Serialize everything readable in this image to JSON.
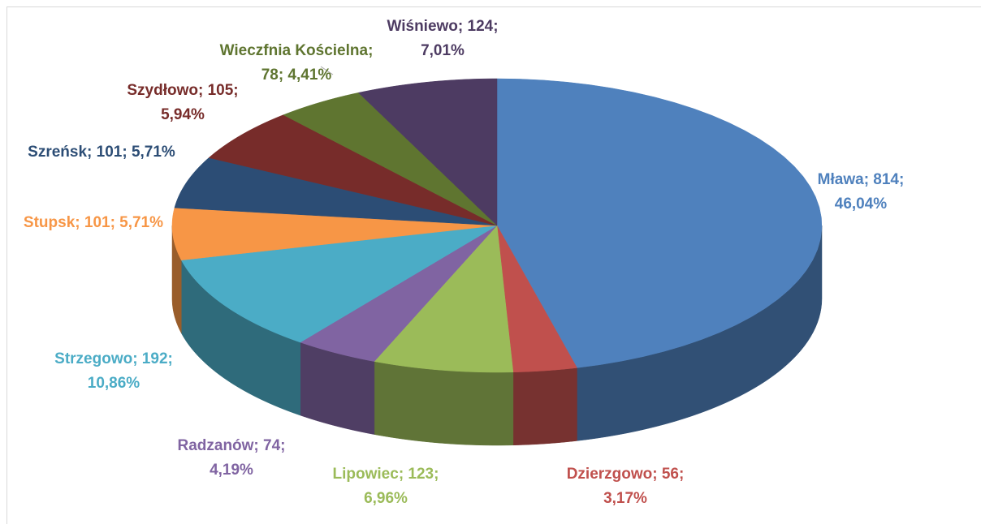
{
  "chart_data": {
    "type": "pie3d",
    "categories": [
      "Mława",
      "Dzierzgowo",
      "Lipowiec",
      "Radzanów",
      "Strzegowo",
      "Stupsk",
      "Szreńsk",
      "Szydłowo",
      "Wieczfnia Kościelna",
      "Wiśniewo"
    ],
    "values": [
      814,
      56,
      123,
      74,
      192,
      101,
      101,
      105,
      78,
      124
    ],
    "value_labels": [
      "Mława; 814; 46,04%",
      "Dzierzgowo; 56; 3,17%",
      "Lipowiec; 123; 6,96%",
      "Radzanów; 74; 4,19%",
      "Strzegowo; 192; 10,86%",
      "Stupsk; 101; 5,71%",
      "Szreńsk; 101; 5,71%",
      "Szydłowo; 105; 5,94%",
      "Wieczfnia Kościelna; 78; 4,41%",
      "Wiśniewo; 124; 7,01%"
    ],
    "colors": [
      "#4f81bd",
      "#c0504d",
      "#9bbb59",
      "#8064a2",
      "#4bacc6",
      "#f79646",
      "#2c4d75",
      "#772c2a",
      "#5f7530",
      "#4d3b62"
    ]
  }
}
